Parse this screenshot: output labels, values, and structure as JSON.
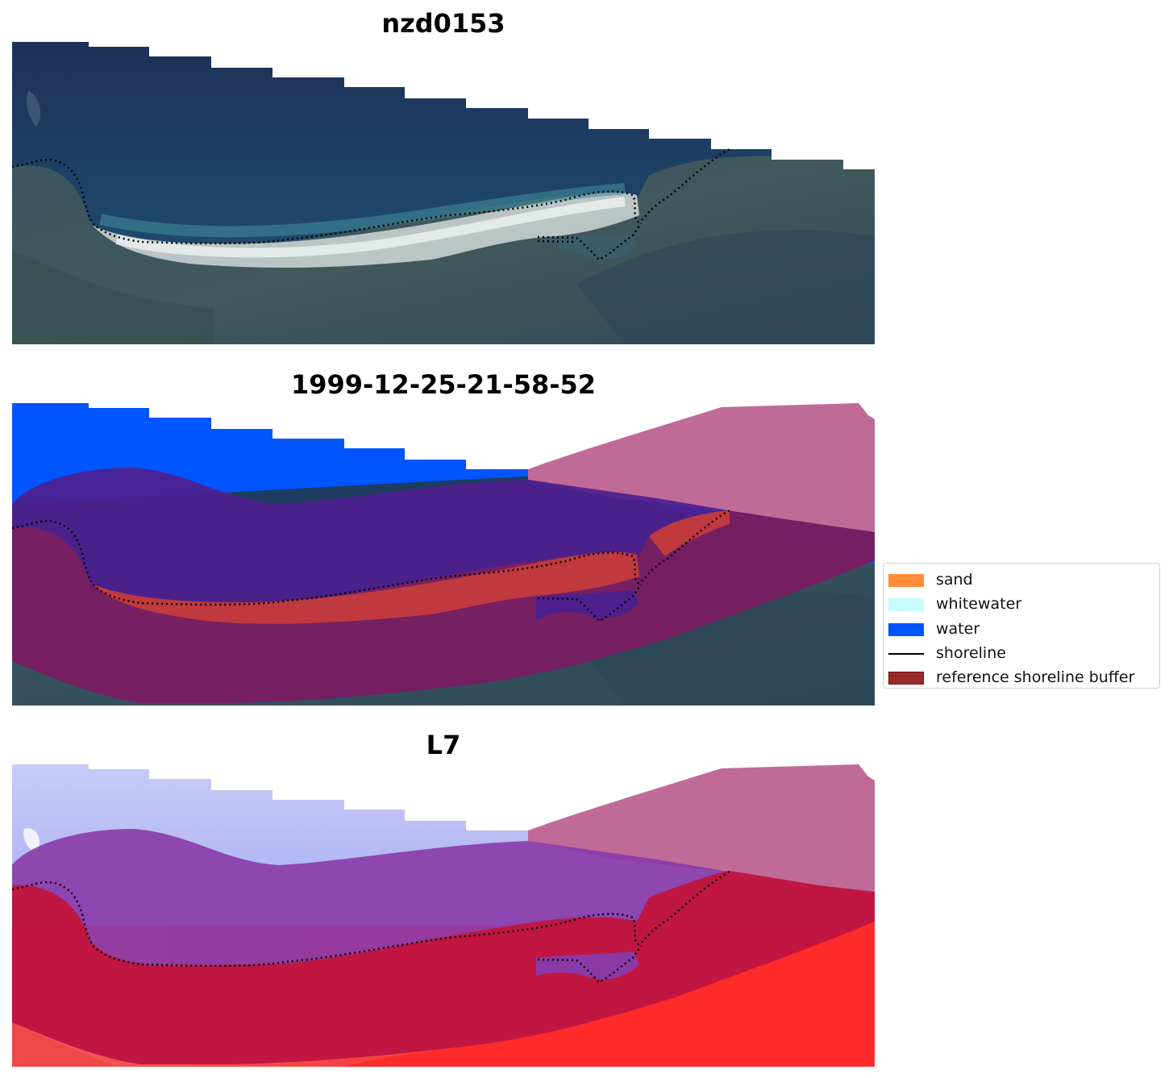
{
  "panels": {
    "rgb": {
      "title": "nzd0153"
    },
    "classification": {
      "title": "1999-12-25-21-58-52"
    },
    "index": {
      "title": "L7"
    }
  },
  "legend": {
    "items": [
      {
        "label": "sand",
        "color": "#ff8c3a",
        "kind": "patch"
      },
      {
        "label": "whitewater",
        "color": "#c8fcfc",
        "kind": "patch"
      },
      {
        "label": "water",
        "color": "#0055ff",
        "kind": "patch"
      },
      {
        "label": "shoreline",
        "color": "#000000",
        "kind": "line"
      },
      {
        "label": "reference shoreline buffer",
        "color": "#9a2a2a",
        "kind": "patch"
      }
    ]
  }
}
